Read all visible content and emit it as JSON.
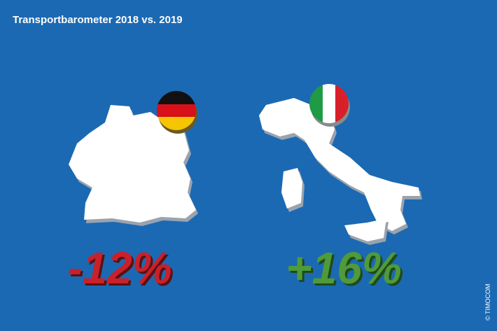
{
  "header": {
    "title": "Transportbarometer 2018 vs. 2019"
  },
  "items": [
    {
      "label": "-12%"
    },
    {
      "label": "+16%"
    }
  ],
  "credit": "© TIMOCOM"
}
